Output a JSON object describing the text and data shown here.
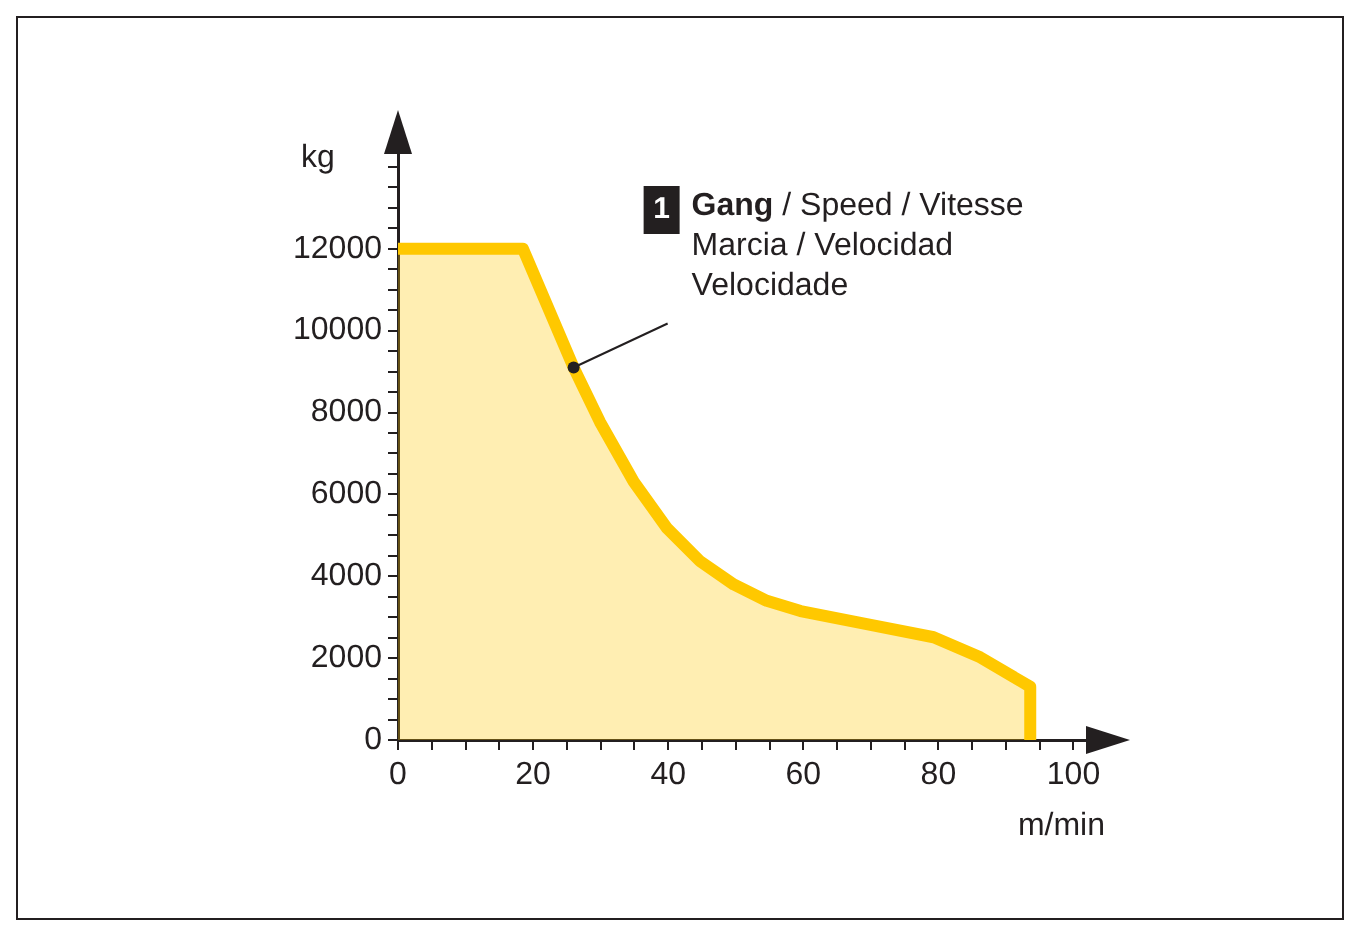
{
  "chart_data": {
    "type": "area",
    "xlabel": "m/min",
    "ylabel": "kg",
    "series": [
      {
        "color": "#ffc800",
        "x": [
          0,
          18.5,
          26,
          29.9,
          34.9,
          39.8,
          44.7,
          49.7,
          54.6,
          59.6,
          69.4,
          79.3,
          86.2,
          93.6,
          93.6
        ],
        "values": [
          12000,
          12000,
          9100,
          7770,
          6310,
          5180,
          4370,
          3800,
          3400,
          3150,
          2830,
          2510,
          2020,
          1300,
          0
        ]
      }
    ],
    "xlim": [
      0,
      106
    ],
    "ylim": [
      0,
      15000
    ],
    "xticks": [
      0,
      {
        "value": 5,
        "label": null
      },
      {
        "value": 10,
        "label": null
      },
      {
        "value": 15,
        "label": null
      },
      20,
      {
        "value": 25,
        "label": null
      },
      {
        "value": 30,
        "label": null
      },
      {
        "value": 35,
        "label": null
      },
      40,
      {
        "value": 45,
        "label": null
      },
      {
        "value": 50,
        "label": null
      },
      {
        "value": 55,
        "label": null
      },
      60,
      {
        "value": 65,
        "label": null
      },
      {
        "value": 70,
        "label": null
      },
      {
        "value": 75,
        "label": null
      },
      80,
      {
        "value": 85,
        "label": null
      },
      {
        "value": 90,
        "label": null
      },
      {
        "value": 95,
        "label": null
      },
      100
    ],
    "yticks": [
      0,
      {
        "value": 500,
        "label": null
      },
      {
        "value": 1000,
        "label": null
      },
      {
        "value": 1500,
        "label": null
      },
      2000,
      {
        "value": 2500,
        "label": null
      },
      {
        "value": 3000,
        "label": null
      },
      {
        "value": 3500,
        "label": null
      },
      4000,
      {
        "value": 4500,
        "label": null
      },
      {
        "value": 5000,
        "label": null
      },
      {
        "value": 5500,
        "label": null
      },
      6000,
      {
        "value": 6500,
        "label": null
      },
      {
        "value": 7000,
        "label": null
      },
      {
        "value": 7500,
        "label": null
      },
      8000,
      {
        "value": 8500,
        "label": null
      },
      {
        "value": 9000,
        "label": null
      },
      {
        "value": 9500,
        "label": null
      },
      10000,
      {
        "value": 10500,
        "label": null
      },
      {
        "value": 11000,
        "label": null
      },
      {
        "value": 11500,
        "label": null
      },
      12000,
      {
        "value": 12500,
        "label": null
      },
      {
        "value": 13000,
        "label": null
      },
      {
        "value": 13500,
        "label": null
      },
      {
        "value": 14000,
        "label": null
      }
    ],
    "annotations": [
      "1",
      {
        "text": "Gang / Speed / Vitesse\nMarcia / Velocidad\nVelocidade",
        "x": 26,
        "y": 9100
      }
    ],
    "grid": false,
    "legend": false,
    "marker": "none",
    "line_style": "solid"
  }
}
